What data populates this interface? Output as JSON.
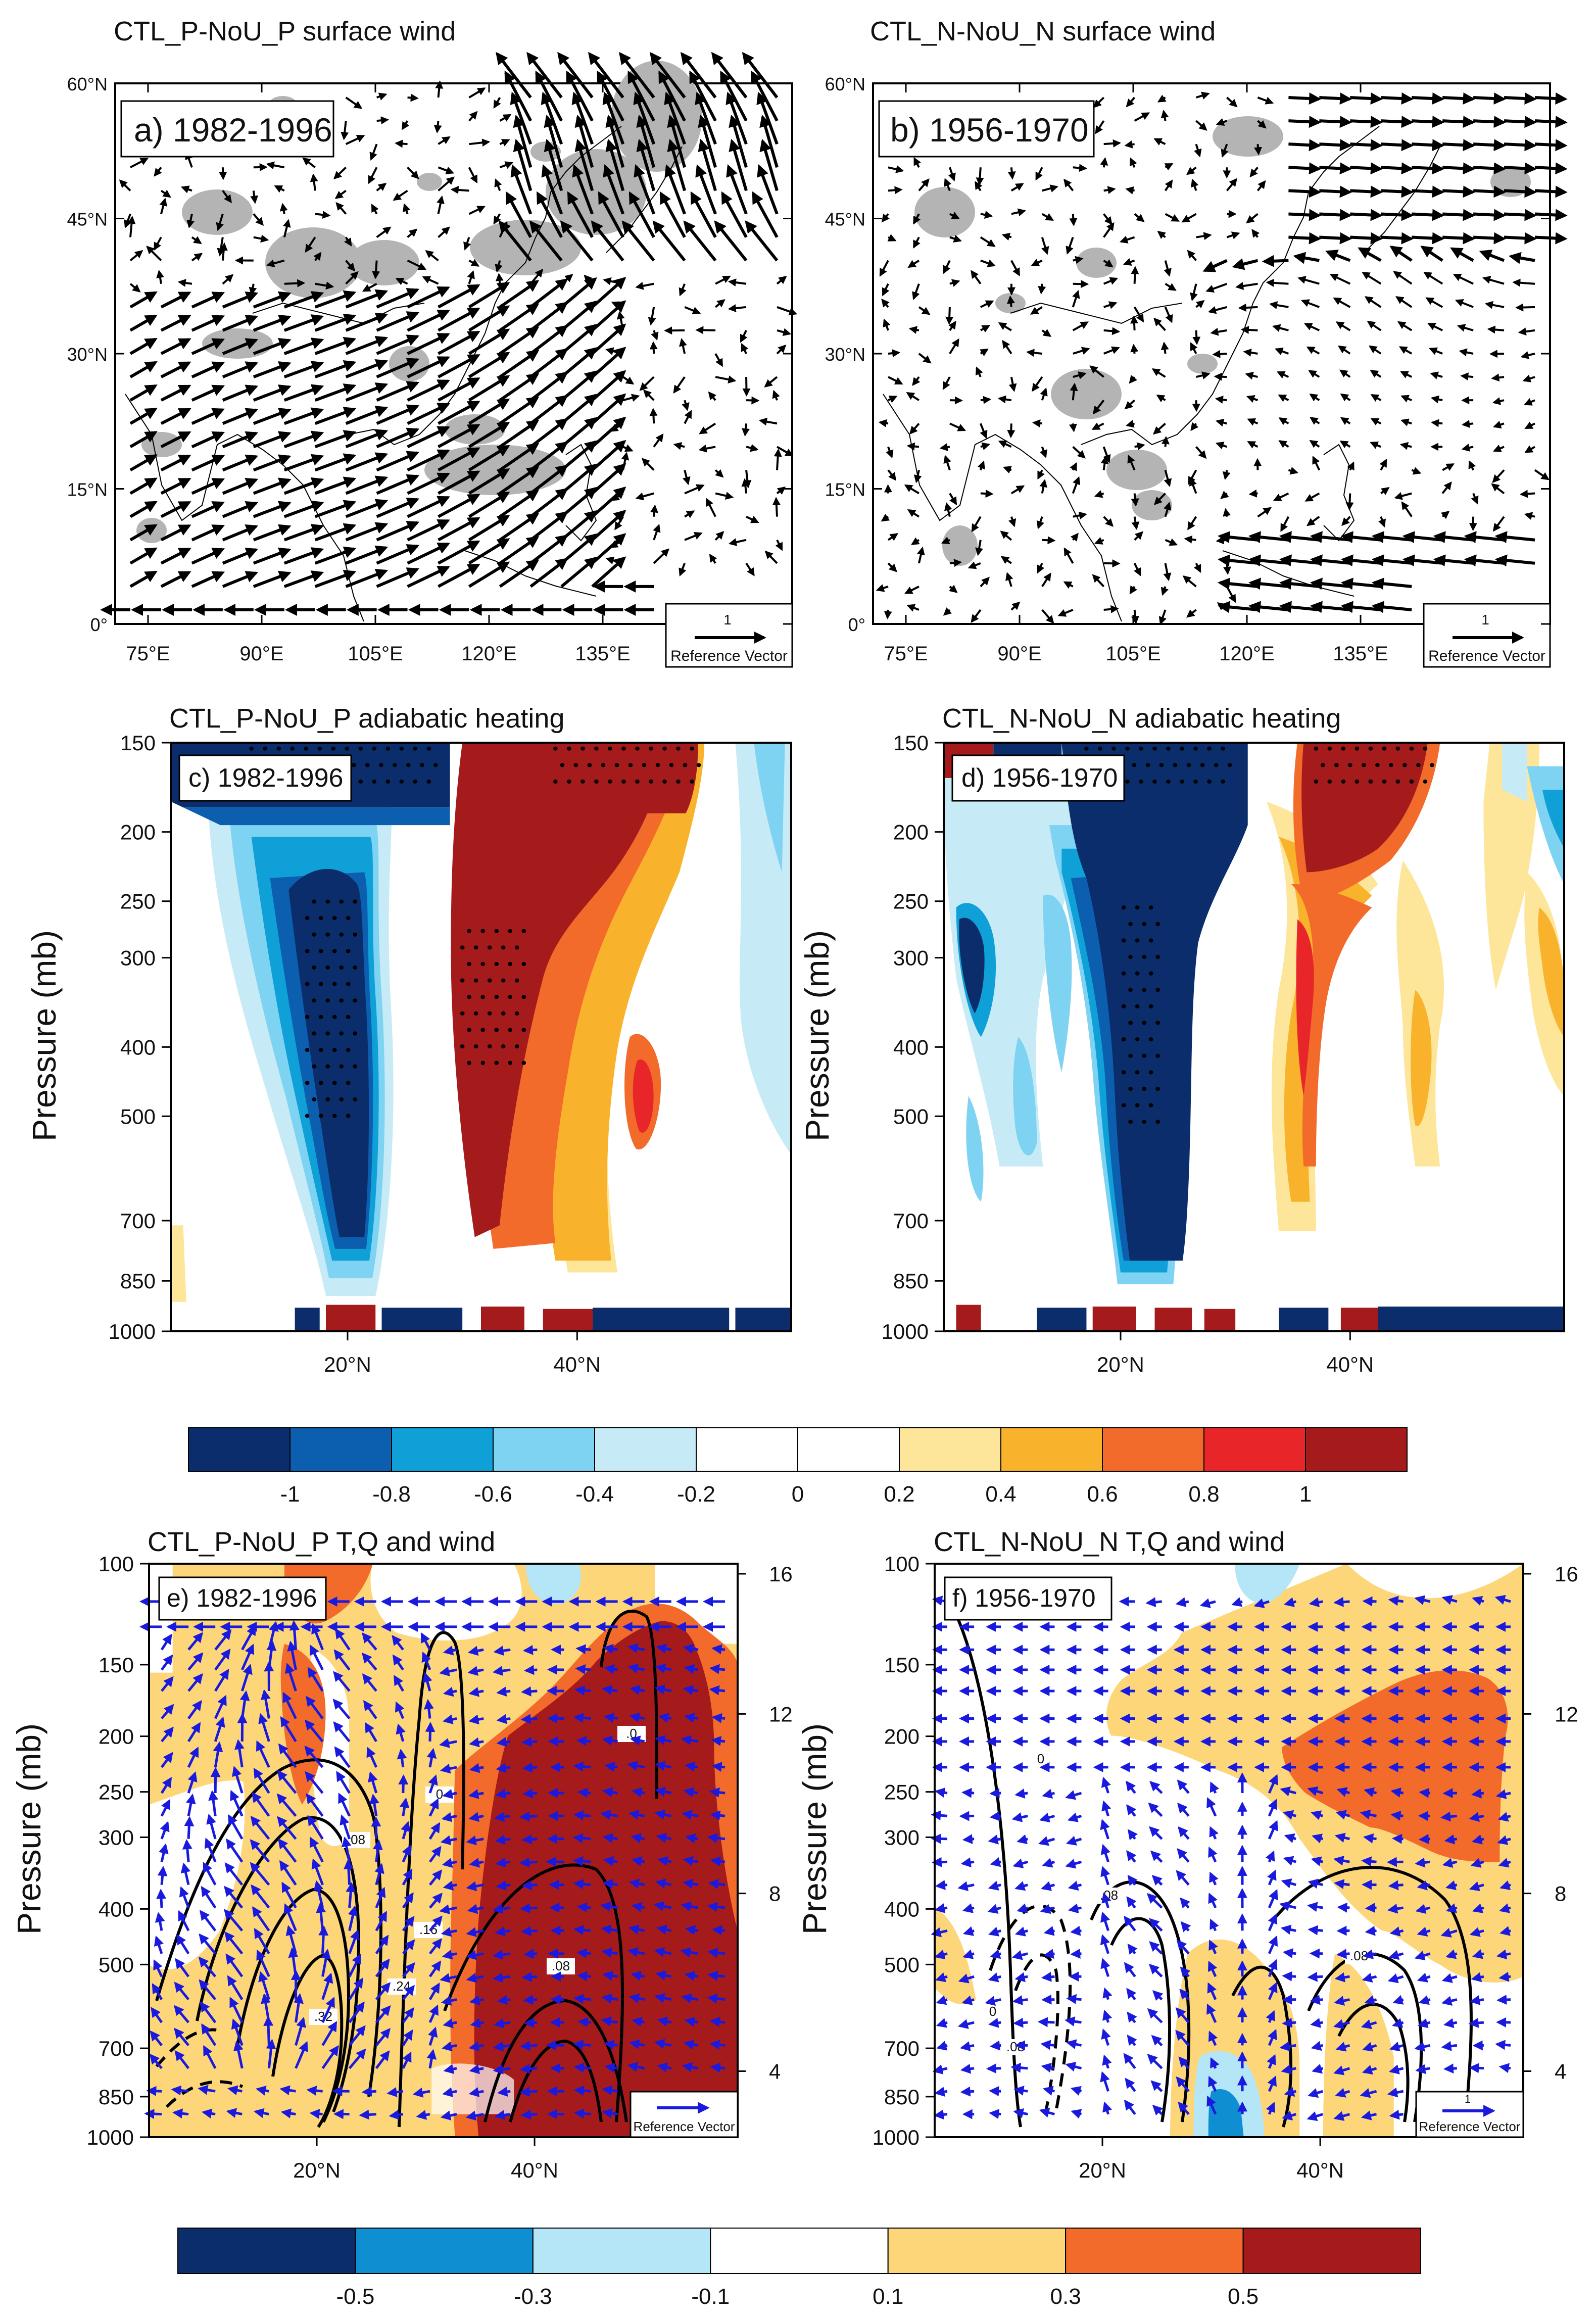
{
  "chart_data": [
    {
      "type": "vector field map",
      "title": "CTL_P-NoU_P surface wind",
      "panel_label": "a) 1982-1996",
      "x_ticks": [
        "75°E",
        "90°E",
        "105°E",
        "120°E",
        "135°E"
      ],
      "y_ticks": [
        "0°",
        "15°N",
        "30°N",
        "45°N",
        "60°N"
      ],
      "reference_vector": {
        "magnitude": "1",
        "label": "Reference Vector"
      },
      "colors": {
        "shading": "#b4b4b4",
        "vector": "#000000"
      }
    },
    {
      "type": "vector field map",
      "title": "CTL_N-NoU_N surface wind",
      "panel_label": "b) 1956-1970",
      "x_ticks": [
        "75°E",
        "90°E",
        "105°E",
        "120°E",
        "135°E"
      ],
      "y_ticks": [
        "0°",
        "15°N",
        "30°N",
        "45°N",
        "60°N"
      ],
      "reference_vector": {
        "magnitude": "1",
        "label": "Reference Vector"
      },
      "colors": {
        "shading": "#b4b4b4",
        "vector": "#000000"
      }
    },
    {
      "type": "filled contour cross-section",
      "title": "CTL_P-NoU_P adiabatic heating",
      "panel_label": "c) 1982-1996",
      "ylabel": "Pressure (mb)",
      "y_ticks": [
        "150",
        "200",
        "250",
        "300",
        "400",
        "500",
        "700",
        "850",
        "1000"
      ],
      "x_ticks": [
        "20°N",
        "40°N"
      ]
    },
    {
      "type": "filled contour cross-section",
      "title": "CTL_N-NoU_N adiabatic heating",
      "panel_label": "d) 1956-1970",
      "ylabel": "Pressure (mb)",
      "y_ticks": [
        "150",
        "200",
        "250",
        "300",
        "400",
        "500",
        "700",
        "850",
        "1000"
      ],
      "x_ticks": [
        "20°N",
        "40°N"
      ]
    },
    {
      "type": "colorbar",
      "labels": [
        "-1",
        "-0.8",
        "-0.6",
        "-0.4",
        "-0.2",
        "0",
        "0.2",
        "0.4",
        "0.6",
        "0.8",
        "1"
      ],
      "colors": [
        "#0b2d6b",
        "#0b5fae",
        "#0fa0d8",
        "#7fd3f2",
        "#c6ebf7",
        "#ffffff",
        "#ffffff",
        "#fde69a",
        "#f9b22c",
        "#f26b2a",
        "#e8262a",
        "#a51a1a"
      ]
    },
    {
      "type": "contour + filled contour + vector cross-section",
      "title": "CTL_P-NoU_P  T,Q and wind",
      "panel_label": "e) 1982-1996",
      "ylabel": "Pressure (mb)",
      "y_ticks": [
        "100",
        "150",
        "200",
        "250",
        "300",
        "400",
        "500",
        "700",
        "850",
        "1000"
      ],
      "y2_ticks": [
        "16",
        "12",
        "8",
        "4"
      ],
      "x_ticks": [
        "20°N",
        "40°N"
      ],
      "contour_labels": [
        "0",
        ".08",
        ".16",
        ".24",
        ".32",
        ".08",
        ".0"
      ],
      "reference_vector": {
        "label": "Reference Vector"
      },
      "colors": {
        "vector": "#1a1adf"
      }
    },
    {
      "type": "contour + filled contour + vector cross-section",
      "title": "CTL_N-NoU_N  T,Q and wind",
      "panel_label": "f) 1956-1970",
      "ylabel": "Pressure (mb)",
      "y_ticks": [
        "100",
        "150",
        "200",
        "250",
        "300",
        "400",
        "500",
        "700",
        "850",
        "1000"
      ],
      "y2_ticks": [
        "16",
        "12",
        "8",
        "4"
      ],
      "x_ticks": [
        "20°N",
        "40°N"
      ],
      "contour_labels": [
        "0",
        ".08",
        "0",
        ".08",
        ".08"
      ],
      "reference_vector": {
        "magnitude": "1",
        "label": "Reference Vector"
      },
      "colors": {
        "vector": "#1a1adf"
      }
    },
    {
      "type": "colorbar",
      "labels": [
        "-0.5",
        "-0.3",
        "-0.1",
        "0.1",
        "0.3",
        "0.5"
      ],
      "colors": [
        "#0b2d6b",
        "#0f8fd2",
        "#b4e6f7",
        "#ffffff",
        "#fdd67a",
        "#f26b2a",
        "#a51a1a"
      ]
    }
  ]
}
